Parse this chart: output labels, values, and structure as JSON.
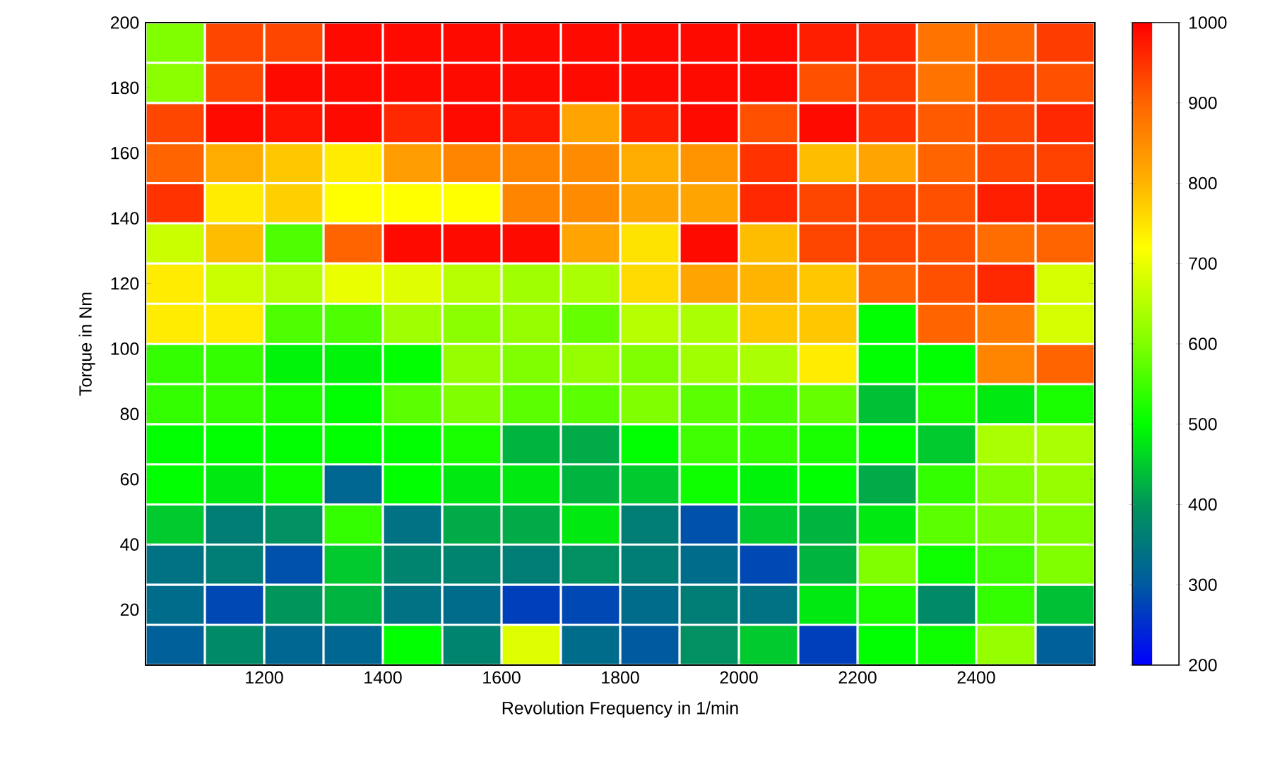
{
  "chart_data": {
    "type": "heatmap",
    "xlabel": "Revolution Frequency in 1/min",
    "ylabel": "Torque in Nm",
    "x": [
      1050,
      1150,
      1250,
      1350,
      1450,
      1550,
      1650,
      1750,
      1850,
      1950,
      2050,
      2150,
      2250,
      2350,
      2450,
      2550
    ],
    "y": [
      193.8,
      181.5,
      169.2,
      156.9,
      144.6,
      132.3,
      120.0,
      107.6,
      95.3,
      83.0,
      70.7,
      58.4,
      46.1,
      33.8,
      21.5,
      9.2
    ],
    "xlim": [
      1000,
      2600
    ],
    "xticks": [
      1200,
      1400,
      1600,
      1800,
      2000,
      2200,
      2400
    ],
    "ylim": [
      3,
      200
    ],
    "yticks": [
      20,
      40,
      60,
      80,
      100,
      120,
      140,
      160,
      180,
      200
    ],
    "clim": [
      200,
      1000
    ],
    "cticks": [
      200,
      300,
      400,
      500,
      600,
      700,
      800,
      900,
      1000
    ],
    "cells": [
      [
        600,
        930,
        930,
        990,
        990,
        990,
        990,
        990,
        990,
        990,
        990,
        970,
        960,
        880,
        900,
        940
      ],
      [
        610,
        930,
        990,
        990,
        990,
        990,
        990,
        990,
        990,
        990,
        990,
        920,
        940,
        880,
        930,
        920
      ],
      [
        930,
        990,
        980,
        990,
        960,
        990,
        975,
        820,
        970,
        990,
        920,
        990,
        950,
        910,
        930,
        960
      ],
      [
        900,
        810,
        780,
        740,
        830,
        860,
        860,
        850,
        810,
        840,
        950,
        790,
        820,
        900,
        930,
        935
      ],
      [
        950,
        740,
        770,
        720,
        720,
        720,
        860,
        850,
        820,
        820,
        960,
        930,
        930,
        920,
        970,
        975
      ],
      [
        670,
        790,
        560,
        900,
        990,
        990,
        990,
        820,
        750,
        990,
        790,
        930,
        930,
        920,
        890,
        900
      ],
      [
        740,
        670,
        650,
        700,
        690,
        650,
        630,
        640,
        760,
        820,
        800,
        780,
        900,
        920,
        960,
        680
      ],
      [
        740,
        740,
        560,
        560,
        630,
        610,
        620,
        580,
        650,
        640,
        780,
        780,
        500,
        900,
        870,
        680
      ],
      [
        540,
        540,
        490,
        490,
        500,
        620,
        600,
        620,
        600,
        630,
        640,
        740,
        500,
        500,
        860,
        900
      ],
      [
        540,
        540,
        520,
        500,
        570,
        600,
        570,
        570,
        600,
        570,
        560,
        580,
        440,
        520,
        480,
        520
      ],
      [
        500,
        500,
        500,
        500,
        500,
        520,
        430,
        420,
        500,
        550,
        540,
        520,
        500,
        450,
        640,
        640
      ],
      [
        500,
        480,
        510,
        320,
        500,
        480,
        480,
        430,
        450,
        510,
        490,
        500,
        420,
        540,
        600,
        620
      ],
      [
        450,
        360,
        390,
        540,
        340,
        420,
        420,
        480,
        360,
        290,
        450,
        430,
        480,
        570,
        590,
        600
      ],
      [
        340,
        360,
        290,
        450,
        370,
        370,
        360,
        390,
        360,
        330,
        280,
        430,
        600,
        510,
        550,
        600
      ],
      [
        330,
        280,
        400,
        430,
        340,
        330,
        270,
        280,
        330,
        360,
        340,
        480,
        520,
        380,
        540,
        440
      ],
      [
        310,
        380,
        320,
        320,
        500,
        370,
        690,
        330,
        300,
        390,
        450,
        270,
        500,
        510,
        620,
        310
      ]
    ]
  }
}
